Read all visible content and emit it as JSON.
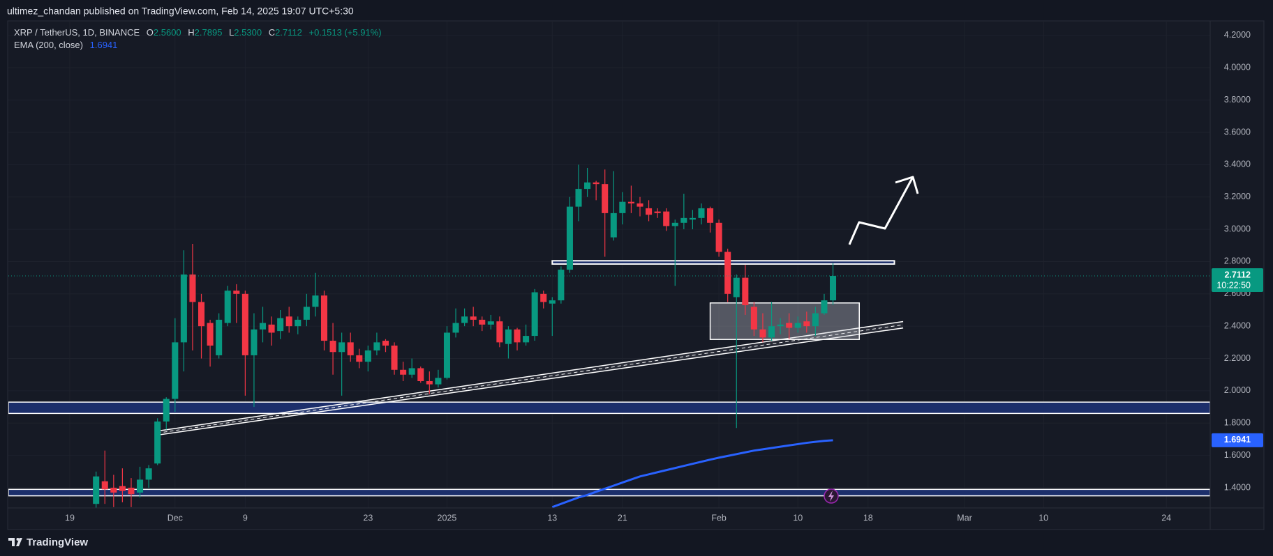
{
  "header": {
    "published": "ultimez_chandan published on TradingView.com, Feb 14, 2025 19:07 UTC+5:30"
  },
  "legend": {
    "symbol": "XRP / TetherUS, 1D, BINANCE",
    "ohlc": [
      {
        "key": "O",
        "value": "2.5600"
      },
      {
        "key": "H",
        "value": "2.7895"
      },
      {
        "key": "L",
        "value": "2.5300"
      },
      {
        "key": "C",
        "value": "2.7112"
      }
    ],
    "change": "+0.1513 (+5.91%)",
    "ema_name": "EMA (200, close)",
    "ema_value": "1.6941"
  },
  "chart_data": {
    "type": "candlestick",
    "up_color": "#089981",
    "down_color": "#f23645",
    "x": [
      "2024-11-22",
      "2024-11-23",
      "2024-11-24",
      "2024-11-25",
      "2024-11-26",
      "2024-11-27",
      "2024-11-28",
      "2024-11-29",
      "2024-11-30",
      "2024-12-01",
      "2024-12-02",
      "2024-12-03",
      "2024-12-04",
      "2024-12-05",
      "2024-12-06",
      "2024-12-07",
      "2024-12-08",
      "2024-12-09",
      "2024-12-10",
      "2024-12-11",
      "2024-12-12",
      "2024-12-13",
      "2024-12-14",
      "2024-12-15",
      "2024-12-16",
      "2024-12-17",
      "2024-12-18",
      "2024-12-19",
      "2024-12-20",
      "2024-12-21",
      "2024-12-22",
      "2024-12-23",
      "2024-12-24",
      "2024-12-25",
      "2024-12-26",
      "2024-12-27",
      "2024-12-28",
      "2024-12-29",
      "2024-12-30",
      "2024-12-31",
      "2025-01-01",
      "2025-01-02",
      "2025-01-03",
      "2025-01-04",
      "2025-01-05",
      "2025-01-06",
      "2025-01-07",
      "2025-01-08",
      "2025-01-09",
      "2025-01-10",
      "2025-01-11",
      "2025-01-12",
      "2025-01-13",
      "2025-01-14",
      "2025-01-15",
      "2025-01-16",
      "2025-01-17",
      "2025-01-18",
      "2025-01-19",
      "2025-01-20",
      "2025-01-21",
      "2025-01-22",
      "2025-01-23",
      "2025-01-24",
      "2025-01-25",
      "2025-01-26",
      "2025-01-27",
      "2025-01-28",
      "2025-01-29",
      "2025-01-30",
      "2025-01-31",
      "2025-02-01",
      "2025-02-02",
      "2025-02-03",
      "2025-02-04",
      "2025-02-05",
      "2025-02-06",
      "2025-02-07",
      "2025-02-08",
      "2025-02-09",
      "2025-02-10",
      "2025-02-11",
      "2025-02-12",
      "2025-02-13",
      "2025-02-14"
    ],
    "open": [
      1.3,
      1.44,
      1.4,
      1.41,
      1.4,
      1.37,
      1.45,
      1.55,
      1.81,
      1.95,
      2.3,
      2.72,
      2.55,
      2.42,
      2.22,
      2.42,
      2.62,
      2.6,
      2.22,
      2.38,
      2.41,
      2.37,
      2.46,
      2.4,
      2.44,
      2.52,
      2.59,
      2.31,
      2.24,
      2.3,
      2.22,
      2.18,
      2.25,
      2.31,
      2.28,
      2.13,
      2.1,
      2.14,
      2.06,
      2.04,
      2.08,
      2.36,
      2.42,
      2.46,
      2.44,
      2.41,
      2.43,
      2.29,
      2.38,
      2.3,
      2.34,
      2.6,
      2.54,
      2.56,
      2.75,
      3.14,
      3.25,
      3.29,
      3.28,
      2.95,
      3.1,
      3.17,
      3.16,
      3.13,
      3.11,
      3.11,
      3.02,
      3.04,
      3.06,
      3.07,
      3.13,
      3.04,
      2.86,
      2.58,
      2.7,
      2.52,
      2.38,
      2.33,
      2.4,
      2.42,
      2.39,
      2.43,
      2.4,
      2.48,
      2.56
    ],
    "high": [
      1.5,
      1.63,
      1.48,
      1.52,
      1.46,
      1.53,
      1.54,
      1.83,
      1.96,
      2.45,
      2.87,
      2.91,
      2.6,
      2.44,
      2.48,
      2.65,
      2.66,
      2.62,
      2.48,
      2.52,
      2.46,
      2.5,
      2.52,
      2.46,
      2.6,
      2.73,
      2.62,
      2.42,
      2.36,
      2.36,
      2.26,
      2.28,
      2.36,
      2.32,
      2.3,
      2.18,
      2.2,
      2.15,
      2.12,
      2.13,
      2.4,
      2.51,
      2.51,
      2.52,
      2.46,
      2.47,
      2.46,
      2.4,
      2.39,
      2.41,
      2.63,
      2.62,
      2.58,
      2.77,
      3.2,
      3.4,
      3.38,
      3.3,
      3.37,
      3.36,
      3.23,
      3.27,
      3.2,
      3.18,
      3.13,
      3.13,
      3.06,
      3.22,
      3.12,
      3.16,
      3.14,
      3.06,
      2.88,
      2.72,
      2.78,
      2.55,
      2.48,
      2.55,
      2.45,
      2.48,
      2.46,
      2.49,
      2.52,
      2.6,
      2.7895
    ],
    "low": [
      1.25,
      1.3,
      1.28,
      1.31,
      1.28,
      1.34,
      1.4,
      1.54,
      1.76,
      1.87,
      2.12,
      2.25,
      2.2,
      2.15,
      2.2,
      2.4,
      2.42,
      1.97,
      1.9,
      2.3,
      2.28,
      2.32,
      2.36,
      2.35,
      2.4,
      2.46,
      2.25,
      2.1,
      1.97,
      2.18,
      2.14,
      2.12,
      2.22,
      2.24,
      2.1,
      2.06,
      2.08,
      2.05,
      1.98,
      2.02,
      2.07,
      2.33,
      2.4,
      2.4,
      2.37,
      2.38,
      2.27,
      2.2,
      2.25,
      2.28,
      2.31,
      2.51,
      2.34,
      2.54,
      2.73,
      3.05,
      3.2,
      3.18,
      2.83,
      2.93,
      3.03,
      3.1,
      3.08,
      3.05,
      3.07,
      2.99,
      2.65,
      3.0,
      3.0,
      3.03,
      2.98,
      2.83,
      2.55,
      1.77,
      2.47,
      2.34,
      2.3,
      2.31,
      2.35,
      2.32,
      2.36,
      2.36,
      2.34,
      2.47,
      2.53
    ],
    "close": [
      1.47,
      1.39,
      1.37,
      1.38,
      1.36,
      1.45,
      1.52,
      1.81,
      1.95,
      2.3,
      2.72,
      2.55,
      2.4,
      2.28,
      2.44,
      2.62,
      2.6,
      2.22,
      2.38,
      2.42,
      2.36,
      2.45,
      2.4,
      2.44,
      2.52,
      2.59,
      2.31,
      2.24,
      2.3,
      2.22,
      2.18,
      2.25,
      2.3,
      2.28,
      2.13,
      2.1,
      2.14,
      2.06,
      2.04,
      2.08,
      2.36,
      2.42,
      2.46,
      2.44,
      2.41,
      2.43,
      2.3,
      2.38,
      2.3,
      2.34,
      2.61,
      2.55,
      2.56,
      2.75,
      3.14,
      3.25,
      3.29,
      3.28,
      3.1,
      3.1,
      3.17,
      3.16,
      3.14,
      3.09,
      3.1,
      3.02,
      3.04,
      3.07,
      3.07,
      3.13,
      3.04,
      2.86,
      2.6,
      2.7,
      2.53,
      2.38,
      2.33,
      2.4,
      2.41,
      2.39,
      2.42,
      2.4,
      2.48,
      2.56,
      2.7112
    ],
    "ema": {
      "name": "EMA (200, close)",
      "color": "#2962ff",
      "value_label": "1.6941",
      "values": [
        null,
        null,
        null,
        null,
        null,
        null,
        null,
        null,
        null,
        null,
        null,
        null,
        null,
        null,
        null,
        null,
        null,
        null,
        null,
        null,
        null,
        null,
        null,
        null,
        null,
        null,
        null,
        null,
        null,
        null,
        null,
        null,
        null,
        null,
        null,
        null,
        null,
        null,
        null,
        null,
        null,
        null,
        null,
        null,
        null,
        null,
        null,
        null,
        null,
        null,
        null,
        null,
        1.28,
        1.3,
        1.32,
        1.34,
        1.355,
        1.375,
        1.394,
        1.413,
        1.432,
        1.451,
        1.47,
        1.483,
        1.496,
        1.509,
        1.522,
        1.535,
        1.548,
        1.561,
        1.574,
        1.586,
        1.597,
        1.608,
        1.619,
        1.63,
        1.638,
        1.646,
        1.654,
        1.662,
        1.67,
        1.678,
        1.684,
        1.69,
        1.6941
      ]
    },
    "last_price_label": "2.7112",
    "countdown": "10:22:50",
    "zones": [
      {
        "low": 1.86,
        "high": 1.93,
        "color": "#1c2f6b"
      },
      {
        "low": 1.35,
        "high": 1.39,
        "color": "#1c2f6b"
      }
    ],
    "resistance": {
      "x0": "2025-01-13",
      "x1": "2025-02-21",
      "low": 2.785,
      "high": 2.805
    },
    "range_box": {
      "x0": "2025-01-31",
      "x1": "2025-02-17",
      "low": 2.318,
      "high": 2.544
    },
    "channel": {
      "x0": "2024-11-29",
      "x1": "2025-02-22",
      "upper": [
        1.751,
        2.429
      ],
      "lower": [
        1.726,
        2.389
      ]
    },
    "ylim": [
      1.275,
      4.29
    ],
    "yticks": [
      {
        "value": 1.4,
        "label": "1.4000"
      },
      {
        "value": 1.6,
        "label": "1.6000"
      },
      {
        "value": 1.8,
        "label": "1.8000"
      },
      {
        "value": 2.0,
        "label": "2.0000"
      },
      {
        "value": 2.2,
        "label": "2.2000"
      },
      {
        "value": 2.4,
        "label": "2.4000"
      },
      {
        "value": 2.6,
        "label": "2.6000"
      },
      {
        "value": 2.8,
        "label": "2.8000"
      },
      {
        "value": 3.0,
        "label": "3.0000"
      },
      {
        "value": 3.2,
        "label": "3.2000"
      },
      {
        "value": 3.4,
        "label": "3.4000"
      },
      {
        "value": 3.6,
        "label": "3.6000"
      },
      {
        "value": 3.8,
        "label": "3.8000"
      },
      {
        "value": 4.0,
        "label": "4.0000"
      },
      {
        "value": 4.2,
        "label": "4.2000"
      }
    ],
    "xlim": [
      "2024-11-12",
      "2025-03-29"
    ],
    "xticks": [
      {
        "value": "2024-11-19",
        "label": "19"
      },
      {
        "value": "2024-12-01",
        "label": "Dec"
      },
      {
        "value": "2024-12-09",
        "label": "9"
      },
      {
        "value": "2024-12-23",
        "label": "23"
      },
      {
        "value": "2025-01-01",
        "label": "2025"
      },
      {
        "value": "2025-01-13",
        "label": "13"
      },
      {
        "value": "2025-01-21",
        "label": "21"
      },
      {
        "value": "2025-02-01",
        "label": "Feb"
      },
      {
        "value": "2025-02-10",
        "label": "10"
      },
      {
        "value": "2025-02-18",
        "label": "18"
      },
      {
        "value": "2025-03-01",
        "label": "Mar"
      },
      {
        "value": "2025-03-10",
        "label": "10"
      },
      {
        "value": "2025-03-24",
        "label": "24"
      }
    ],
    "grid": true
  },
  "footer": {
    "brand": "TradingView"
  }
}
